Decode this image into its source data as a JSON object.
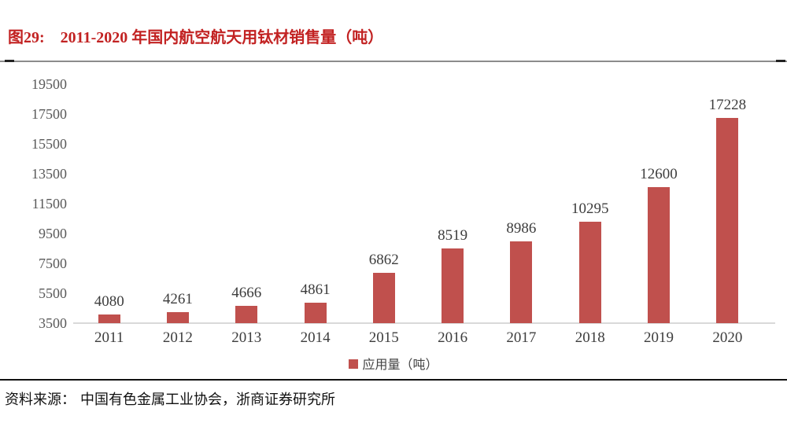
{
  "figure": {
    "label": "图29:",
    "title": "2011-2020 年国内航空航天用钛材销售量（吨）",
    "source_label": "资料来源：",
    "source": "中国有色金属工业协会，浙商证券研究所"
  },
  "chart_data": {
    "type": "bar",
    "title": "2011-2020 年国内航空航天用钛材销售量（吨）",
    "categories": [
      "2011",
      "2012",
      "2013",
      "2014",
      "2015",
      "2016",
      "2017",
      "2018",
      "2019",
      "2020"
    ],
    "series": [
      {
        "name": "应用量（吨）",
        "color": "#c0504d",
        "values": [
          4080,
          4261,
          4666,
          4861,
          6862,
          8519,
          8986,
          10295,
          12600,
          17228
        ]
      }
    ],
    "ylim": [
      3500,
      19500
    ],
    "yticks": [
      19500,
      17500,
      15500,
      13500,
      11500,
      9500,
      7500,
      5500,
      3500
    ],
    "grid": false,
    "legend_position": "bottom",
    "data_labels": true,
    "xlabel": "",
    "ylabel": ""
  },
  "colors": {
    "title_red": "#c22222",
    "bar_red": "#c0504d",
    "tick_text": "#595959",
    "label_text": "#3d3d3d",
    "axis_line": "#d9d9d9",
    "top_rule": "#8c8c8c",
    "bottom_rule": "#111111"
  }
}
